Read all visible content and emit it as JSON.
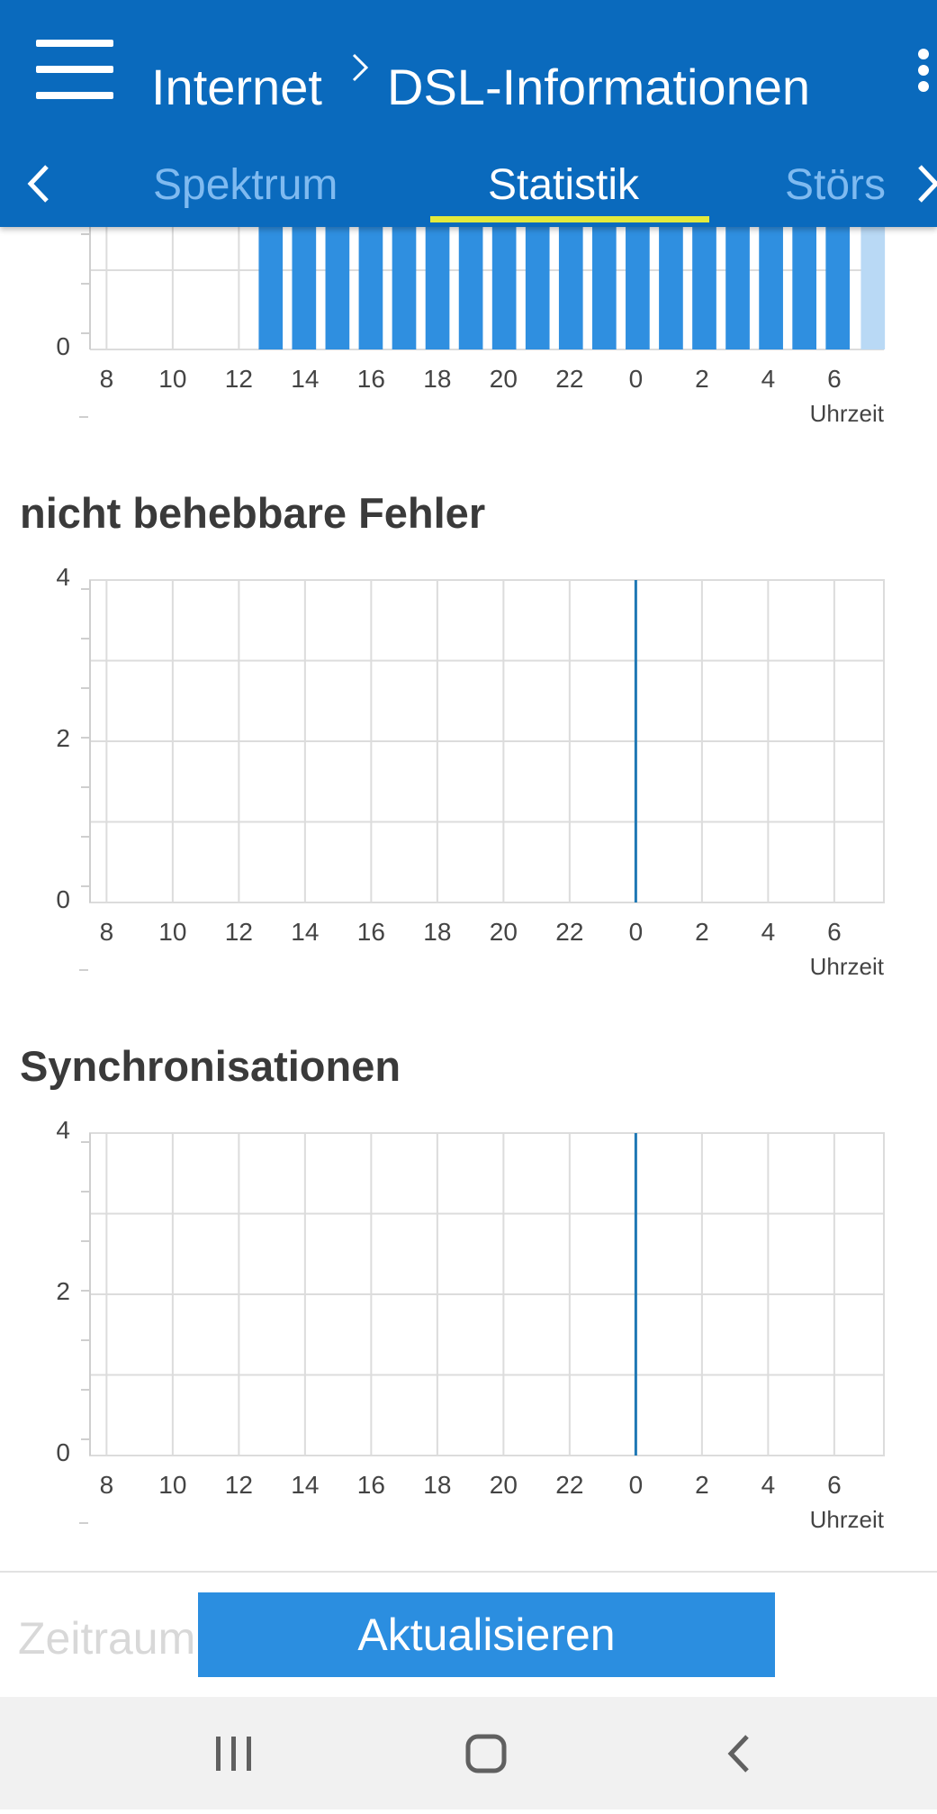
{
  "header": {
    "breadcrumb_root": "Internet",
    "breadcrumb_page": "DSL-Informationen",
    "tabs": [
      {
        "label": "Spektrum",
        "active": false
      },
      {
        "label": "Statistik",
        "active": true
      },
      {
        "label": "Störs",
        "active": false
      }
    ],
    "colors": {
      "bar": "#0a6abd",
      "tab_indicator": "#e3ea3c",
      "inactive_tab": "#7fbaf0"
    }
  },
  "sections": {
    "errors_title": "nicht behebbare Fehler",
    "sync_title": "Synchronisationen"
  },
  "footer": {
    "period_label": "Zeitraum",
    "refresh_label": "Aktualisieren"
  },
  "navbar": {
    "icons": [
      "recent-apps-icon",
      "home-icon",
      "back-icon"
    ]
  },
  "chart_data": [
    {
      "type": "bar",
      "title": "",
      "xlabel": "Uhrzeit",
      "x_ticks": [
        "8",
        "10",
        "12",
        "14",
        "16",
        "18",
        "20",
        "22",
        "0",
        "2",
        "4",
        "6"
      ],
      "y_ticks": [
        "0"
      ],
      "bar_start_hour": 12.6,
      "bar_end_hour": 6.75,
      "partial_bar_color": "#b9d9f5",
      "bar_color": "#2f8fe0",
      "note": "top portion scrolled out of view"
    },
    {
      "type": "bar",
      "title": "nicht behebbare Fehler",
      "xlabel": "Uhrzeit",
      "x_ticks": [
        "8",
        "10",
        "12",
        "14",
        "16",
        "18",
        "20",
        "22",
        "0",
        "2",
        "4",
        "6"
      ],
      "y_ticks": [
        "0",
        "2",
        "4"
      ],
      "ylim": [
        0,
        4
      ],
      "marker_hour": "0",
      "series": [
        {
          "values": []
        }
      ]
    },
    {
      "type": "bar",
      "title": "Synchronisationen",
      "xlabel": "Uhrzeit",
      "x_ticks": [
        "8",
        "10",
        "12",
        "14",
        "16",
        "18",
        "20",
        "22",
        "0",
        "2",
        "4",
        "6"
      ],
      "y_ticks": [
        "0",
        "2",
        "4"
      ],
      "ylim": [
        0,
        4
      ],
      "marker_hour": "0",
      "series": [
        {
          "values": []
        }
      ]
    }
  ]
}
